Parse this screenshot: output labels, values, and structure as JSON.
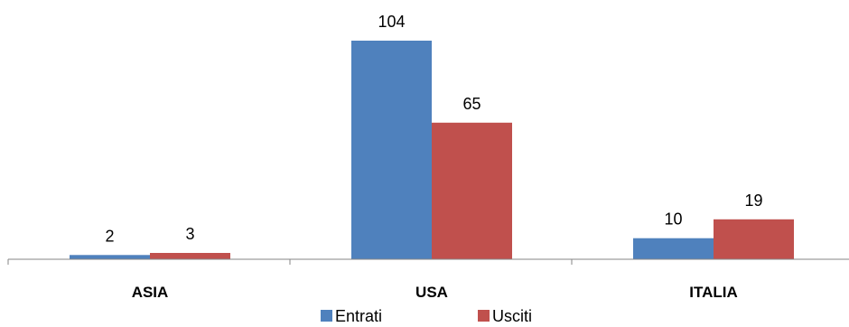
{
  "chart_data": {
    "type": "bar",
    "categories": [
      "ASIA",
      "USA",
      "ITALIA"
    ],
    "series": [
      {
        "name": "Entrati",
        "values": [
          2,
          104,
          10
        ],
        "color": "#4F81BD"
      },
      {
        "name": "Usciti",
        "values": [
          3,
          65,
          19
        ],
        "color": "#C0504D"
      }
    ],
    "title": "",
    "xlabel": "",
    "ylabel": "",
    "ylim": [
      0,
      104
    ],
    "grid": false,
    "legend_position": "bottom",
    "data_labels": true
  }
}
